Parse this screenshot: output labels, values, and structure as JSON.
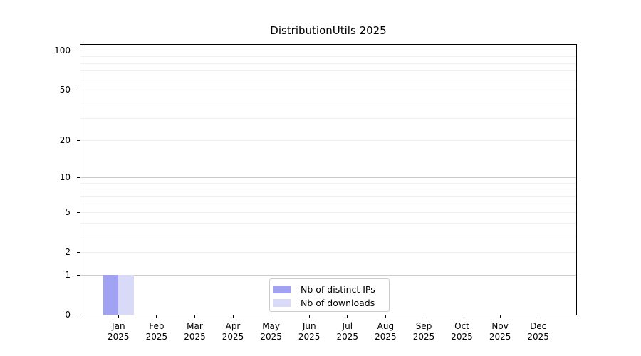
{
  "chart_data": {
    "type": "bar",
    "title": "DistributionUtils 2025",
    "categories": [
      "Jan",
      "Feb",
      "Mar",
      "Apr",
      "May",
      "Jun",
      "Jul",
      "Aug",
      "Sep",
      "Oct",
      "Nov",
      "Dec"
    ],
    "x_sublabel": "2025",
    "series": [
      {
        "name": "Nb of distinct IPs",
        "color": "#a2a2f2",
        "values": [
          1,
          0,
          0,
          0,
          0,
          0,
          0,
          0,
          0,
          0,
          0,
          0
        ]
      },
      {
        "name": "Nb of downloads",
        "color": "#d9d9f8",
        "values": [
          1,
          0,
          0,
          0,
          0,
          0,
          0,
          0,
          0,
          0,
          0,
          0
        ]
      }
    ],
    "yscale": "log1p",
    "ylim": [
      0,
      110.6
    ],
    "yticks": [
      0,
      1,
      2,
      5,
      10,
      20,
      50,
      100
    ],
    "major_gridlines": [
      1,
      10,
      100
    ],
    "minor_gridlines": [
      2,
      3,
      4,
      5,
      6,
      7,
      8,
      9,
      20,
      30,
      40,
      50,
      60,
      70,
      80,
      90
    ],
    "grid": "horizontal",
    "legend_position": "lower center",
    "colors": {
      "axis": "#000000",
      "major_grid": "#cccccc",
      "minor_grid": "#efefef",
      "text": "#000000",
      "legend_border": "#cccccc"
    }
  }
}
